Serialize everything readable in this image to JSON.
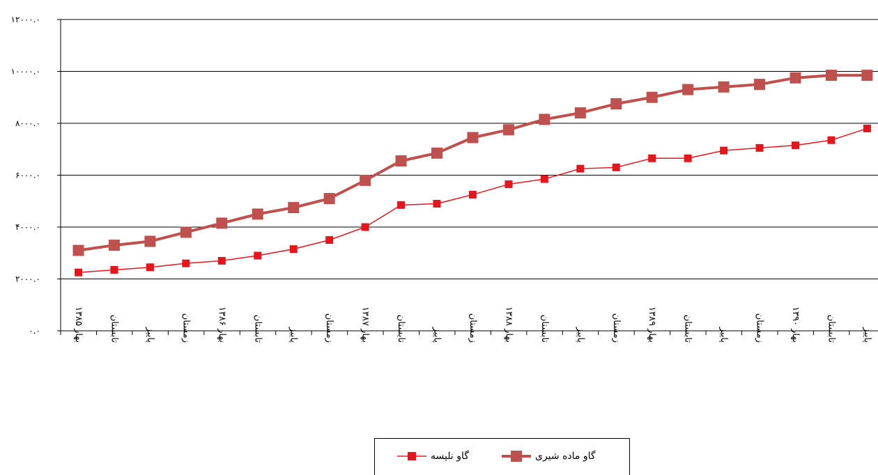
{
  "chart_data": {
    "type": "line",
    "title": "",
    "xlabel": "",
    "ylabel": "",
    "ylim": [
      0,
      12000
    ],
    "yticks": [
      {
        "value": 0,
        "label": "۰.۰"
      },
      {
        "value": 2000,
        "label": "۲۰۰۰.۰"
      },
      {
        "value": 4000,
        "label": "۴۰۰۰.۰"
      },
      {
        "value": 6000,
        "label": "۶۰۰۰.۰"
      },
      {
        "value": 8000,
        "label": "۸۰۰۰.۰"
      },
      {
        "value": 10000,
        "label": "۱۰۰۰۰.۰"
      },
      {
        "value": 12000,
        "label": "۱۲۰۰۰.۰"
      }
    ],
    "categories": [
      "بهار ۱۳۸۵",
      "تابستان",
      "پاییز",
      "زمستان",
      "بهار ۱۳۸۶",
      "تابستان",
      "پاییز",
      "زمستان",
      "بهار ۱۳۸۷",
      "تابستان",
      "پاییز",
      "زمستان",
      "بهار ۱۳۸۸",
      "تابستان",
      "پاییز",
      "زمستان",
      "بهار ۱۳۸۹",
      "تابستان",
      "پاییز",
      "زمستان",
      "بهار ۱۳۹۰",
      "تابستان",
      "پاییز"
    ],
    "grid": true,
    "legend_position": "bottom",
    "series": [
      {
        "name": "گاو ماده شیری",
        "color": "#c0504d",
        "values": [
          3100,
          3300,
          3450,
          3800,
          4150,
          4500,
          4750,
          5100,
          5800,
          6550,
          6850,
          7450,
          7750,
          8150,
          8400,
          8750,
          9000,
          9300,
          9400,
          9500,
          9750,
          9850,
          9850
        ]
      },
      {
        "name": "گاو نلیسه",
        "color": "#e8141c",
        "values": [
          2250,
          2350,
          2450,
          2600,
          2700,
          2900,
          3150,
          3500,
          4000,
          4850,
          4900,
          5250,
          5650,
          5850,
          6250,
          6300,
          6650,
          6650,
          6950,
          7050,
          7150,
          7350,
          7800
        ]
      }
    ]
  }
}
